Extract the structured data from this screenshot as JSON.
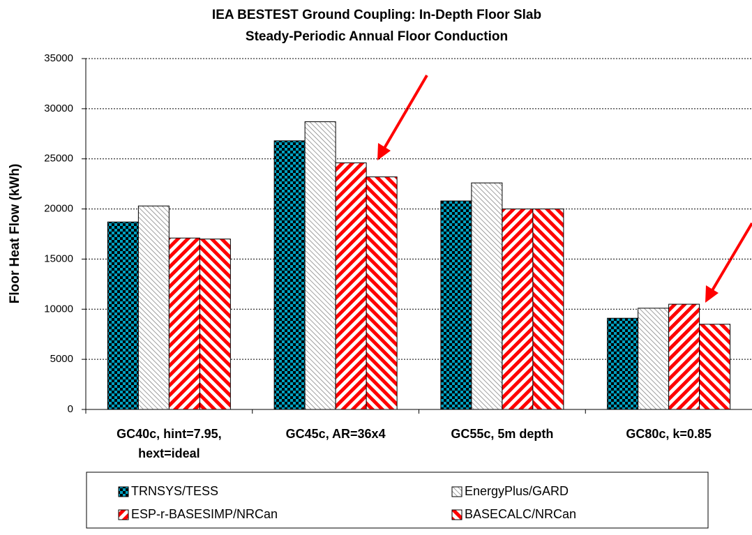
{
  "chart_data": {
    "type": "bar",
    "title": "IEA BESTEST Ground Coupling: In-Depth Floor Slab",
    "subtitle": "Steady-Periodic Annual Floor Conduction",
    "y_label": "Floor Heat Flow (kWh)",
    "categories": [
      "GC40c, hint=7.95,\nhext=ideal",
      "GC45c, AR=36x4",
      "GC55c, 5m depth",
      "GC80c, k=0.85"
    ],
    "series": [
      {
        "name": "TRNSYS/TESS",
        "color": "#00a0c0",
        "pattern": "checker",
        "values": [
          18700,
          26800,
          20800,
          9100
        ]
      },
      {
        "name": "EnergyPlus/GARD",
        "color": "#808080",
        "pattern": "hatch",
        "values": [
          20300,
          28700,
          22600,
          10100
        ]
      },
      {
        "name": "ESP-r-BASESIMP/NRCan",
        "color": "#ff0000",
        "pattern": "stripe-up",
        "values": [
          17100,
          24600,
          20000,
          10500
        ]
      },
      {
        "name": "BASECALC/NRCan",
        "color": "#ff0000",
        "pattern": "stripe-down",
        "values": [
          17000,
          23200,
          20000,
          8500
        ]
      }
    ],
    "ylim": [
      0,
      35000
    ],
    "yticks": [
      0,
      5000,
      10000,
      15000,
      20000,
      25000,
      30000,
      35000
    ],
    "grid": true
  }
}
